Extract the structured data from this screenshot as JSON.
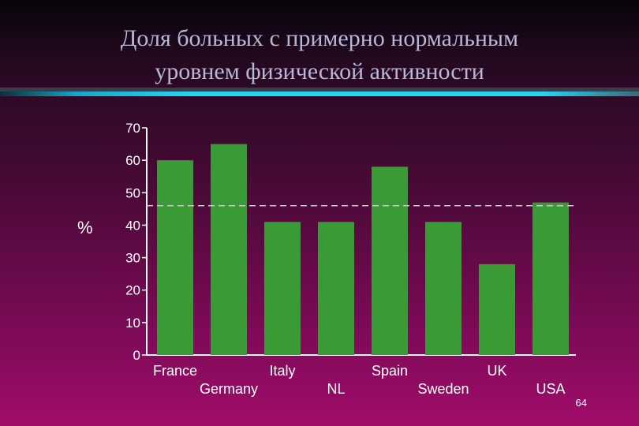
{
  "slide": {
    "title_line1": "Доля больных с примерно нормальным",
    "title_line2": "уровнем физической активности",
    "page_number": "64",
    "unit_label": "%"
  },
  "colors": {
    "bar": "#3a9a36",
    "axis": "#ffffff",
    "text": "#ffffff",
    "title": "#b7b7d9",
    "reference_line": "#c8c8c8"
  },
  "chart_data": {
    "type": "bar",
    "title": "",
    "xlabel": "",
    "ylabel": "%",
    "categories": [
      "France",
      "Germany",
      "Italy",
      "NL",
      "Spain",
      "Sweden",
      "UK",
      "USA"
    ],
    "values": [
      60,
      65,
      41,
      41,
      58,
      41,
      28,
      47
    ],
    "ylim": [
      0,
      70
    ],
    "yticks": [
      0,
      10,
      20,
      30,
      40,
      50,
      60,
      70
    ],
    "reference_line": {
      "value": 46,
      "style": "dashed"
    },
    "grid": false,
    "legend": "none"
  }
}
